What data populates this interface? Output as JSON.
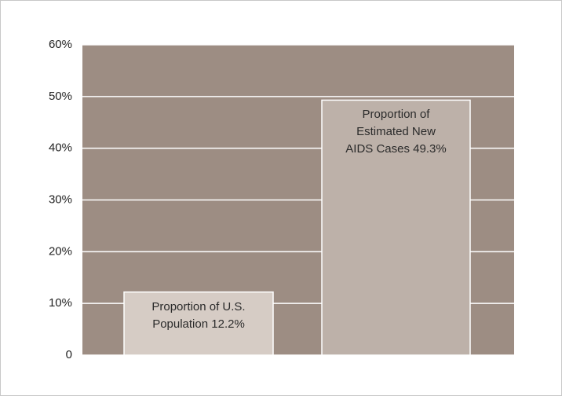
{
  "chart_data": {
    "type": "bar",
    "categories": [
      "Proportion of U.S. Population",
      "Proportion of Estimated New AIDS Cases"
    ],
    "values": [
      12.2,
      49.3
    ],
    "value_labels": [
      "12.2%",
      "49.3%"
    ],
    "colors": [
      "#d6ccc5",
      "#bdb1a9"
    ],
    "background": "#9d8d83",
    "ylim": [
      0,
      60
    ],
    "yticks": [
      0,
      {
        "value": 10,
        "label": "10%"
      },
      {
        "value": 20,
        "label": "20%"
      },
      {
        "value": 30,
        "label": "30%"
      },
      {
        "value": 40,
        "label": "40%"
      },
      {
        "value": 50,
        "label": "50%"
      },
      {
        "value": 60,
        "label": "60%"
      }
    ],
    "grid": true
  }
}
